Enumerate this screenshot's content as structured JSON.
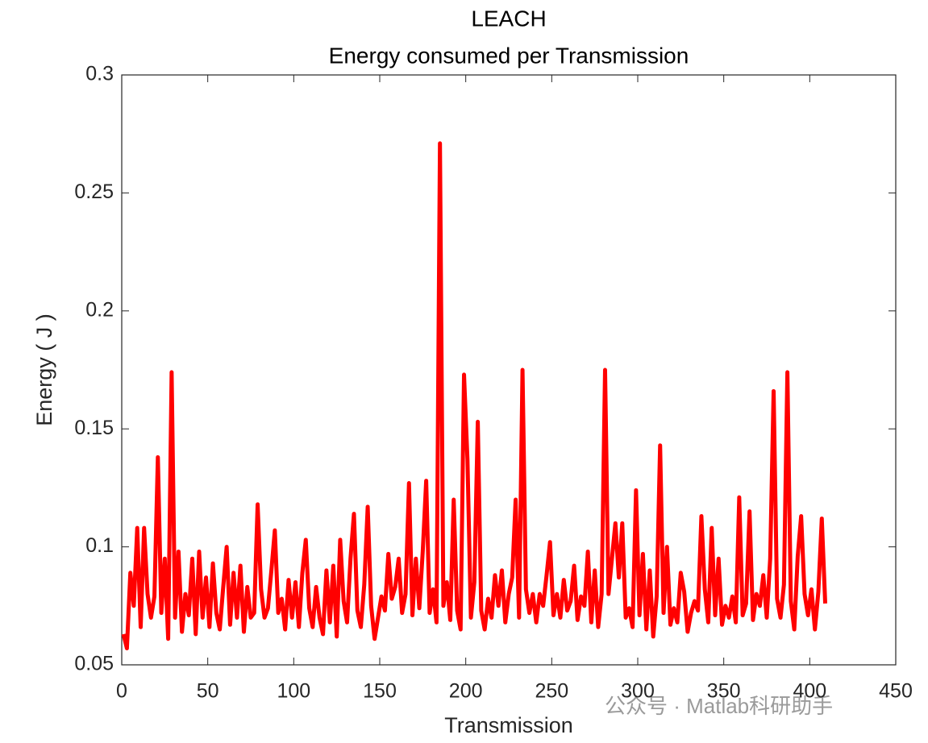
{
  "chart_data": {
    "type": "line",
    "title": "LEACH",
    "subtitle": "Energy consumed per Transmission",
    "xlabel": "Transmission",
    "ylabel": "Energy ( J )",
    "watermark": "公众号 · Matlab科研助手",
    "color": "#ff0000",
    "xlim": [
      0,
      450
    ],
    "xticks": [
      0,
      50,
      100,
      150,
      200,
      250,
      300,
      350,
      400,
      450
    ],
    "ylim": [
      0.05,
      0.3
    ],
    "yticks": [
      0.05,
      0.1,
      0.15,
      0.2,
      0.25,
      0.3
    ],
    "x": [
      1,
      3,
      5,
      7,
      9,
      11,
      13,
      15,
      17,
      19,
      21,
      23,
      25,
      27,
      29,
      31,
      33,
      35,
      37,
      39,
      41,
      43,
      45,
      47,
      49,
      51,
      53,
      55,
      57,
      59,
      61,
      63,
      65,
      67,
      69,
      71,
      73,
      75,
      77,
      79,
      81,
      83,
      85,
      87,
      89,
      91,
      93,
      95,
      97,
      99,
      101,
      103,
      105,
      107,
      109,
      111,
      113,
      115,
      117,
      119,
      121,
      123,
      125,
      127,
      129,
      131,
      133,
      135,
      137,
      139,
      141,
      143,
      145,
      147,
      149,
      151,
      153,
      155,
      157,
      159,
      161,
      163,
      165,
      167,
      169,
      171,
      173,
      175,
      177,
      179,
      181,
      183,
      185,
      187,
      189,
      191,
      193,
      195,
      197,
      199,
      201,
      203,
      205,
      207,
      209,
      211,
      213,
      215,
      217,
      219,
      221,
      223,
      225,
      227,
      229,
      231,
      233,
      235,
      237,
      239,
      241,
      243,
      245,
      247,
      249,
      251,
      253,
      255,
      257,
      259,
      261,
      263,
      265,
      267,
      269,
      271,
      273,
      275,
      277,
      279,
      281,
      283,
      285,
      287,
      289,
      291,
      293,
      295,
      297,
      299,
      301,
      303,
      305,
      307,
      309,
      311,
      313,
      315,
      317,
      319,
      321,
      323,
      325,
      327,
      329,
      331,
      333,
      335,
      337,
      339,
      341,
      343,
      345,
      347,
      349,
      351,
      353,
      355,
      357,
      359,
      361,
      363,
      365,
      367,
      369,
      371,
      373,
      375,
      377,
      379,
      381,
      383,
      385,
      387,
      389,
      391,
      393,
      395,
      397,
      399,
      401,
      403,
      405,
      407,
      409
    ],
    "values": [
      0.063,
      0.057,
      0.089,
      0.075,
      0.108,
      0.066,
      0.108,
      0.08,
      0.07,
      0.079,
      0.138,
      0.072,
      0.095,
      0.061,
      0.174,
      0.07,
      0.098,
      0.064,
      0.08,
      0.071,
      0.095,
      0.063,
      0.098,
      0.07,
      0.087,
      0.066,
      0.093,
      0.072,
      0.065,
      0.083,
      0.1,
      0.067,
      0.089,
      0.07,
      0.092,
      0.064,
      0.083,
      0.07,
      0.072,
      0.118,
      0.082,
      0.07,
      0.074,
      0.09,
      0.107,
      0.072,
      0.078,
      0.065,
      0.086,
      0.07,
      0.085,
      0.066,
      0.089,
      0.103,
      0.074,
      0.066,
      0.083,
      0.07,
      0.063,
      0.09,
      0.068,
      0.092,
      0.062,
      0.103,
      0.077,
      0.068,
      0.095,
      0.114,
      0.073,
      0.066,
      0.084,
      0.117,
      0.075,
      0.061,
      0.07,
      0.079,
      0.073,
      0.097,
      0.078,
      0.083,
      0.095,
      0.072,
      0.08,
      0.127,
      0.071,
      0.095,
      0.074,
      0.098,
      0.128,
      0.072,
      0.082,
      0.068,
      0.271,
      0.075,
      0.085,
      0.069,
      0.12,
      0.073,
      0.065,
      0.173,
      0.137,
      0.07,
      0.085,
      0.153,
      0.073,
      0.065,
      0.078,
      0.07,
      0.088,
      0.075,
      0.09,
      0.068,
      0.08,
      0.087,
      0.12,
      0.07,
      0.175,
      0.082,
      0.072,
      0.08,
      0.068,
      0.08,
      0.075,
      0.088,
      0.102,
      0.071,
      0.08,
      0.07,
      0.086,
      0.073,
      0.077,
      0.092,
      0.069,
      0.079,
      0.075,
      0.098,
      0.068,
      0.09,
      0.066,
      0.08,
      0.175,
      0.08,
      0.095,
      0.11,
      0.087,
      0.11,
      0.07,
      0.074,
      0.066,
      0.124,
      0.071,
      0.097,
      0.065,
      0.09,
      0.062,
      0.079,
      0.143,
      0.072,
      0.1,
      0.067,
      0.074,
      0.068,
      0.089,
      0.081,
      0.064,
      0.072,
      0.077,
      0.073,
      0.113,
      0.082,
      0.068,
      0.108,
      0.071,
      0.095,
      0.067,
      0.075,
      0.07,
      0.079,
      0.068,
      0.121,
      0.071,
      0.076,
      0.115,
      0.069,
      0.08,
      0.075,
      0.088,
      0.07,
      0.095,
      0.166,
      0.078,
      0.07,
      0.084,
      0.174,
      0.077,
      0.065,
      0.096,
      0.113,
      0.08,
      0.071,
      0.082,
      0.065,
      0.081,
      0.112,
      0.076
    ]
  }
}
